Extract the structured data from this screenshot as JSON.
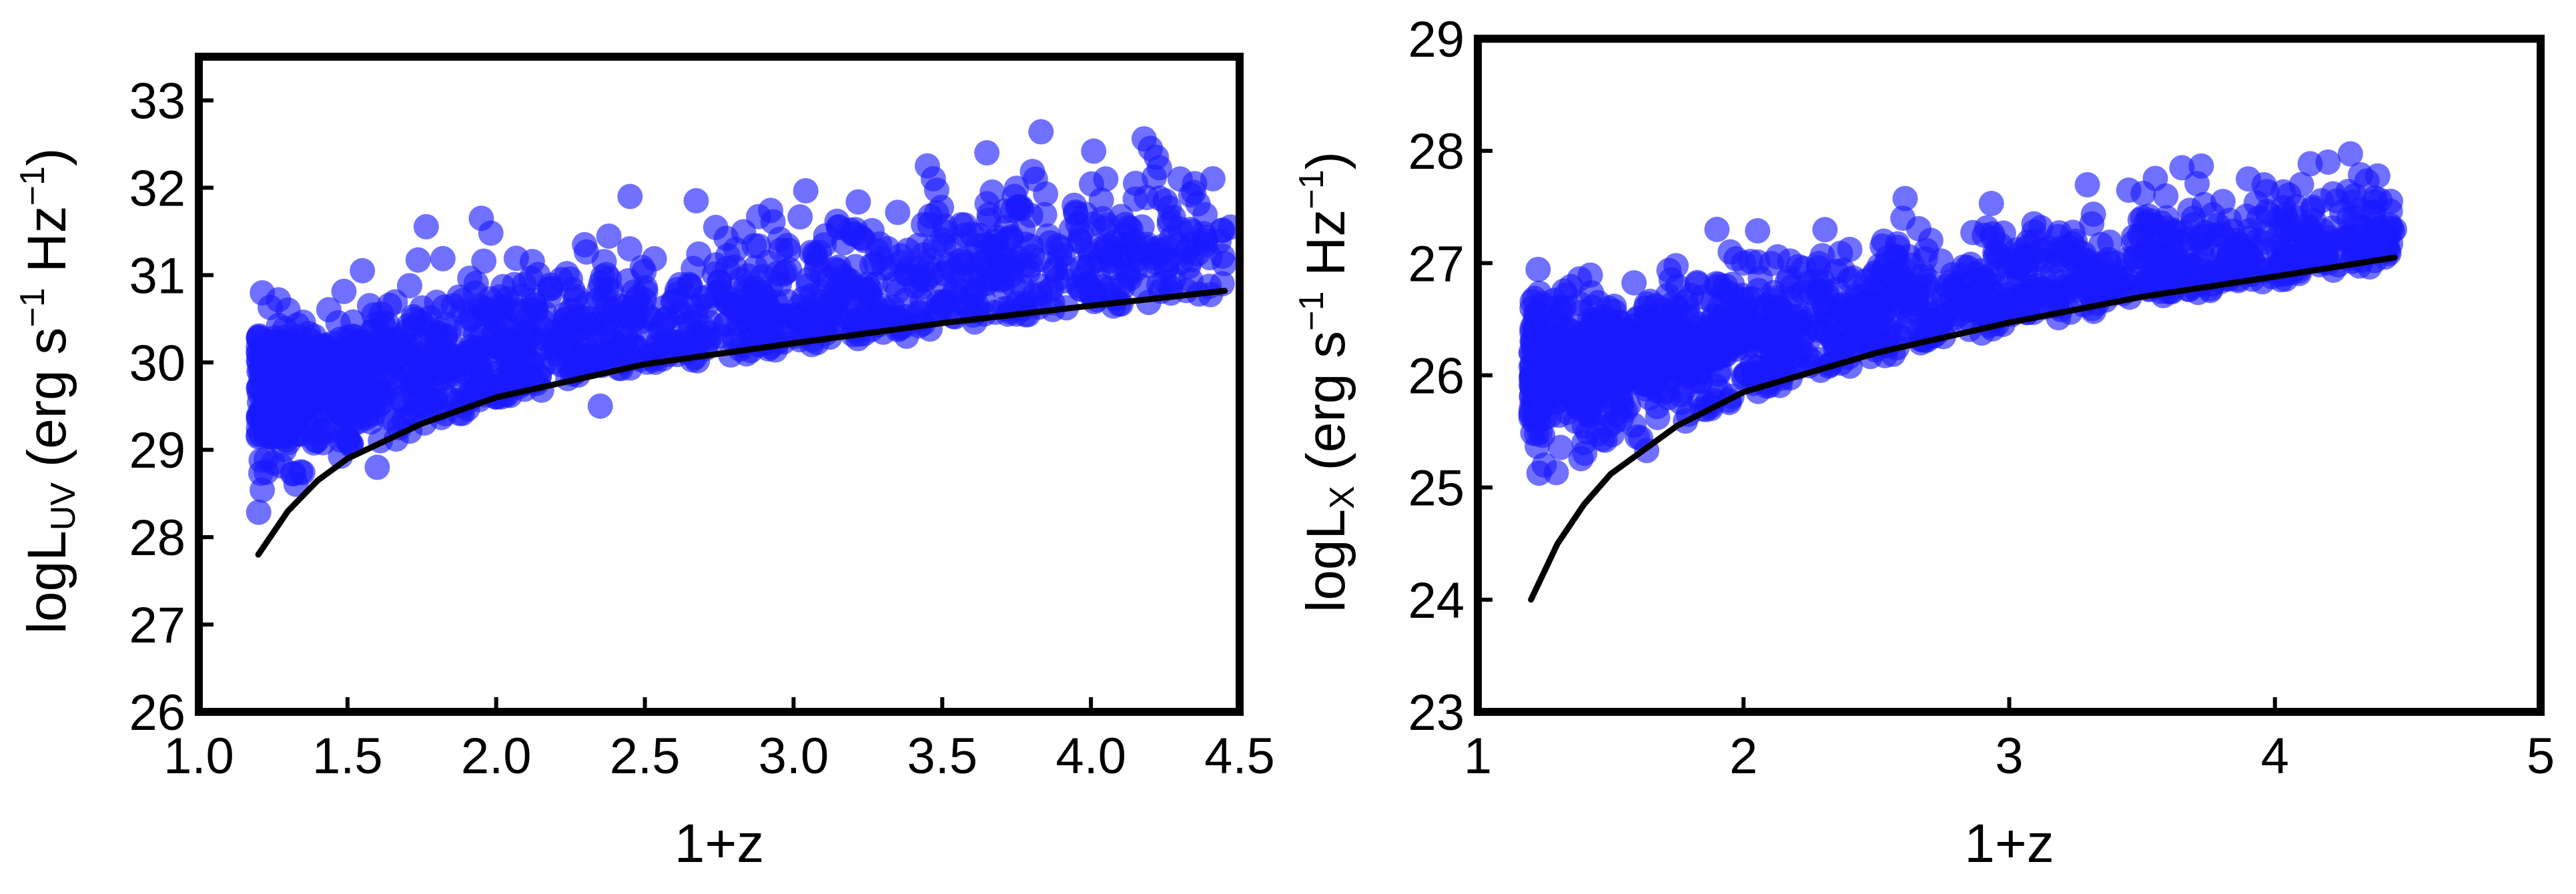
{
  "chart_data": [
    {
      "type": "scatter",
      "xlabel": "1+z",
      "ylabel": {
        "prefix": "logL",
        "subscript": "UV",
        "units_a": " (erg s",
        "sup1": "−1",
        "units_b": " Hz",
        "sup2": "−1",
        "units_c": ")"
      },
      "xlim": [
        1.0,
        4.5
      ],
      "ylim": [
        26,
        33.5
      ],
      "xticks": [
        "1.0",
        "1.5",
        "2.0",
        "2.5",
        "3.0",
        "3.5",
        "4.0",
        "4.5"
      ],
      "yticks": [
        "26",
        "27",
        "28",
        "29",
        "30",
        "31",
        "32",
        "33"
      ],
      "grid": false,
      "point_color": "#1a1aff",
      "line_color": "#000000",
      "cloud": {
        "x_range": [
          1.2,
          4.45
        ],
        "trend": [
          [
            1.2,
            29.6
          ],
          [
            1.5,
            29.75
          ],
          [
            2.0,
            30.1
          ],
          [
            2.5,
            30.45
          ],
          [
            3.0,
            30.7
          ],
          [
            3.5,
            30.95
          ],
          [
            4.0,
            31.2
          ],
          [
            4.45,
            31.35
          ]
        ],
        "spread": 0.45
      },
      "outliers": [
        [
          4.2,
          32.45
        ],
        [
          4.22,
          32.35
        ],
        [
          3.65,
          32.4
        ],
        [
          3.45,
          32.25
        ],
        [
          4.05,
          32.1
        ],
        [
          4.15,
          32.05
        ],
        [
          4.3,
          32.1
        ],
        [
          4.25,
          31.85
        ],
        [
          1.95,
          31.65
        ],
        [
          2.45,
          31.9
        ],
        [
          1.55,
          31.05
        ],
        [
          1.3,
          30.6
        ],
        [
          4.4,
          31.2
        ],
        [
          4.47,
          31.55
        ],
        [
          3.38,
          30.3
        ],
        [
          2.35,
          29.5
        ],
        [
          1.6,
          28.8
        ],
        [
          1.25,
          28.85
        ],
        [
          1.2,
          29.15
        ]
      ],
      "limit_curve": [
        [
          1.2,
          27.8
        ],
        [
          1.3,
          28.3
        ],
        [
          1.4,
          28.65
        ],
        [
          1.5,
          28.9
        ],
        [
          1.75,
          29.3
        ],
        [
          2.0,
          29.6
        ],
        [
          2.5,
          29.98
        ],
        [
          3.0,
          30.22
        ],
        [
          3.5,
          30.45
        ],
        [
          4.0,
          30.65
        ],
        [
          4.45,
          30.82
        ]
      ]
    },
    {
      "type": "scatter",
      "xlabel": "1+z",
      "ylabel": {
        "prefix": "logL",
        "subscript": "X",
        "units_a": " (erg s",
        "sup1": "−1",
        "units_b": " Hz",
        "sup2": "−1",
        "units_c": ")"
      },
      "xlim": [
        1,
        5
      ],
      "ylim": [
        23,
        29
      ],
      "xticks": [
        "1",
        "2",
        "3",
        "4",
        "5"
      ],
      "yticks": [
        "23",
        "24",
        "25",
        "26",
        "27",
        "28",
        "29"
      ],
      "grid": false,
      "point_color": "#1a1aff",
      "line_color": "#000000",
      "cloud": {
        "x_range": [
          1.2,
          4.45
        ],
        "trend": [
          [
            1.2,
            26.05
          ],
          [
            1.5,
            26.15
          ],
          [
            2.0,
            26.35
          ],
          [
            2.5,
            26.6
          ],
          [
            3.0,
            26.8
          ],
          [
            3.5,
            26.95
          ],
          [
            4.0,
            27.1
          ],
          [
            4.45,
            27.25
          ]
        ],
        "spread": 0.32
      },
      "outliers": [
        [
          4.2,
          27.9
        ],
        [
          3.65,
          27.85
        ],
        [
          3.9,
          27.75
        ],
        [
          4.1,
          27.7
        ],
        [
          4.3,
          27.6
        ],
        [
          4.45,
          27.3
        ],
        [
          1.9,
          27.3
        ],
        [
          1.95,
          27.1
        ],
        [
          2.0,
          27.0
        ],
        [
          1.25,
          25.2
        ],
        [
          1.2,
          25.65
        ],
        [
          1.6,
          25.45
        ],
        [
          1.4,
          25.4
        ],
        [
          3.45,
          27.65
        ],
        [
          2.6,
          27.4
        ]
      ],
      "limit_curve": [
        [
          1.2,
          24.0
        ],
        [
          1.3,
          24.5
        ],
        [
          1.4,
          24.85
        ],
        [
          1.5,
          25.12
        ],
        [
          1.75,
          25.55
        ],
        [
          2.0,
          25.85
        ],
        [
          2.5,
          26.2
        ],
        [
          3.0,
          26.47
        ],
        [
          3.5,
          26.7
        ],
        [
          4.0,
          26.88
        ],
        [
          4.45,
          27.05
        ]
      ]
    }
  ]
}
